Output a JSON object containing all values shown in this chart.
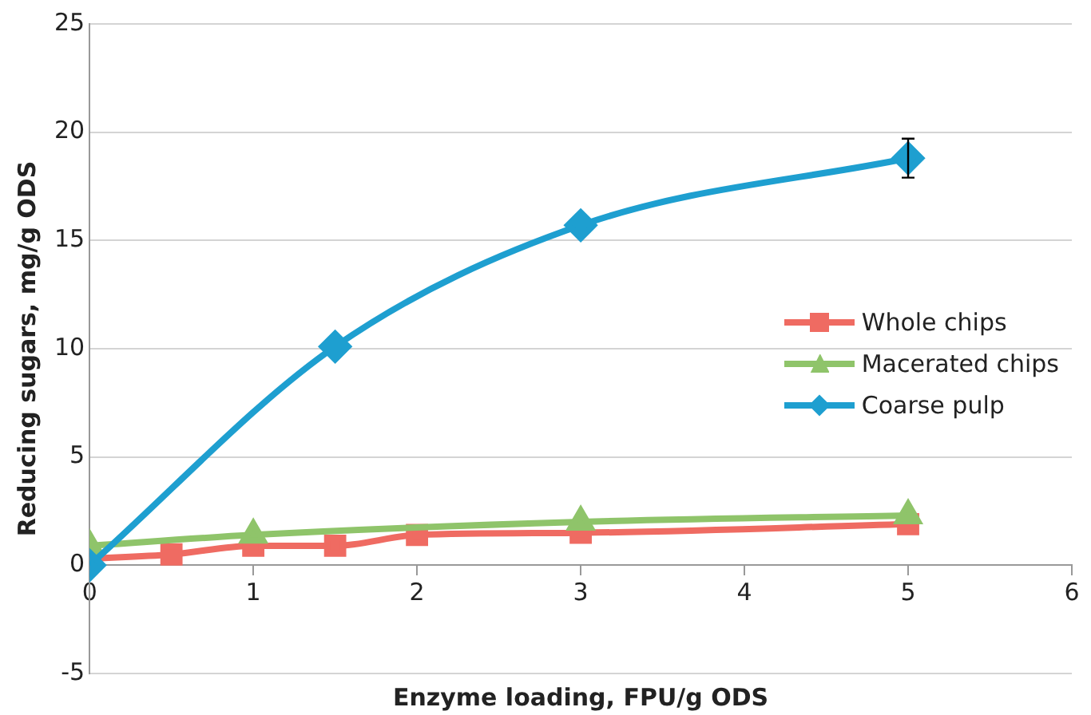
{
  "chart_data": {
    "type": "line",
    "xlabel": "Enzyme loading, FPU/g ODS",
    "ylabel": "Reducing sugars, mg/g ODS",
    "xlim": [
      0,
      6
    ],
    "xticks": [
      0,
      1,
      2,
      3,
      4,
      5,
      6
    ],
    "ylim": [
      -5,
      25
    ],
    "yticks": [
      -5,
      0,
      5,
      10,
      15,
      20,
      25
    ],
    "grid": "y",
    "legend": "right",
    "series": [
      {
        "name": "Whole chips",
        "color": "#ef6b62",
        "marker": "square",
        "x": [
          0,
          0.5,
          1,
          1.5,
          2,
          3,
          5
        ],
        "values": [
          0.3,
          0.5,
          0.9,
          0.9,
          1.4,
          1.5,
          1.9
        ]
      },
      {
        "name": "Macerated chips",
        "color": "#8fc46a",
        "marker": "triangle",
        "x": [
          0,
          1,
          3,
          5
        ],
        "values": [
          0.9,
          1.4,
          2.0,
          2.3
        ]
      },
      {
        "name": "Coarse pulp",
        "color": "#1e9fd0",
        "marker": "diamond",
        "x": [
          0,
          1.5,
          3,
          5
        ],
        "values": [
          0,
          10.1,
          15.7,
          18.8
        ],
        "errors": [
          null,
          null,
          null,
          0.9
        ]
      }
    ]
  }
}
